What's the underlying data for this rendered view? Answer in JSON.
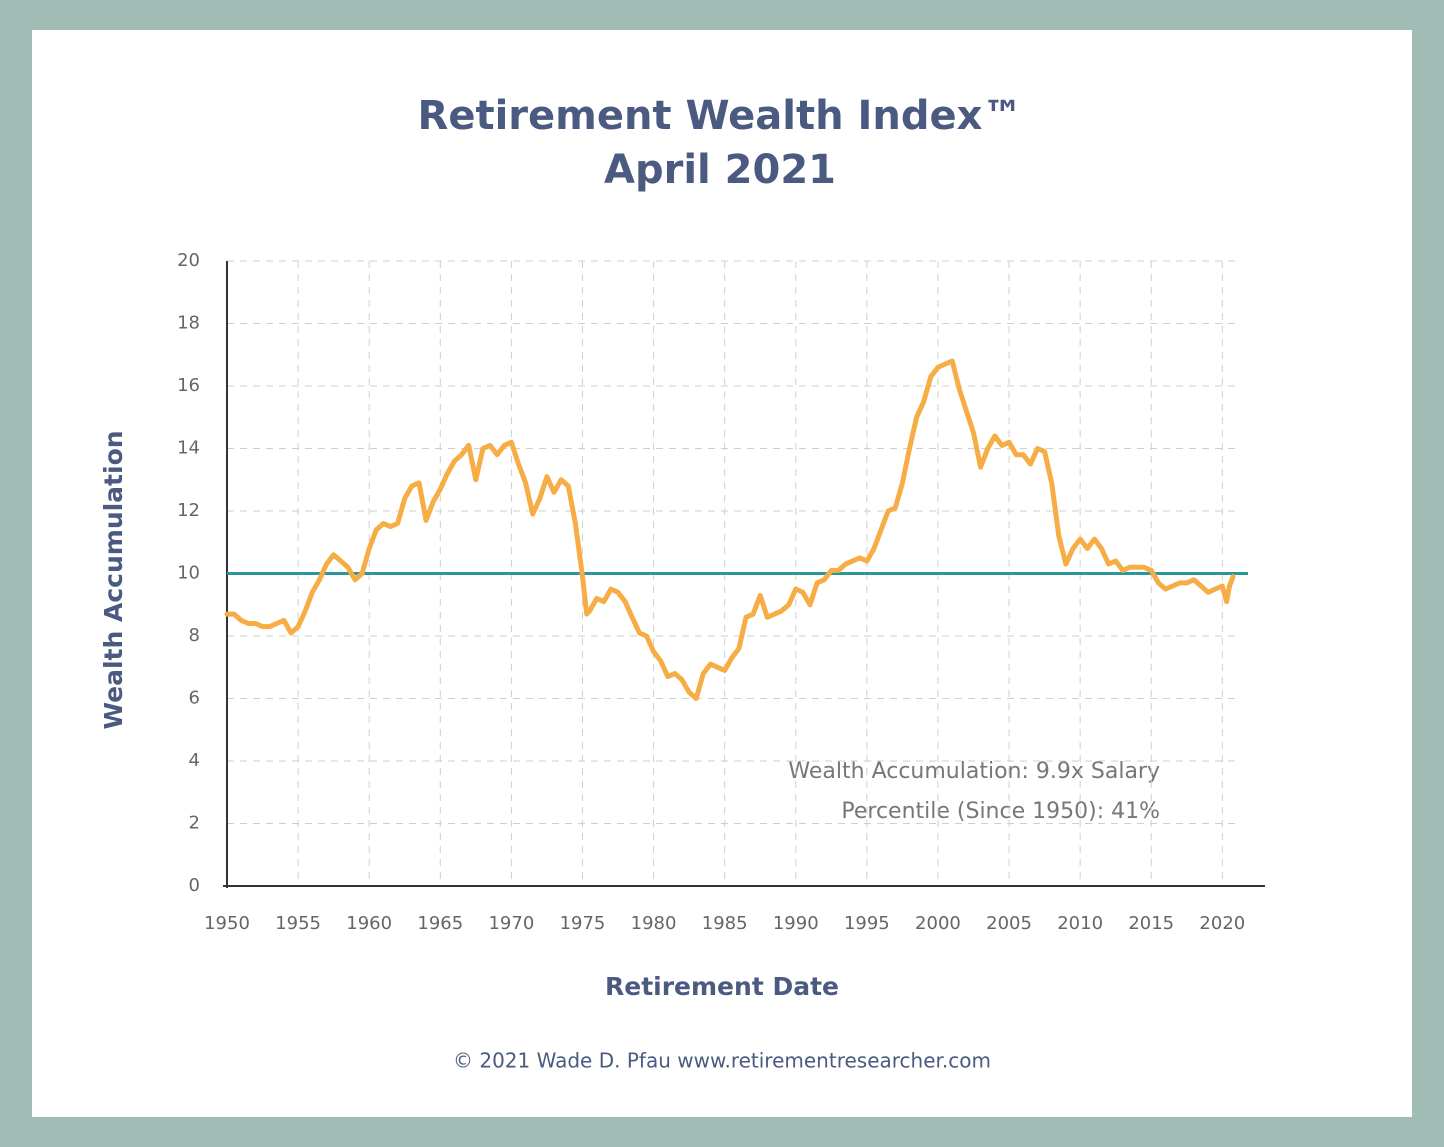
{
  "chart_data": {
    "type": "line",
    "title": "Retirement Wealth Index™",
    "subtitle": "April 2021",
    "x_label": "Retirement Date",
    "y_label": "Wealth Accumulation",
    "annotations": [
      "Wealth Accumulation: 9.9x Salary",
      "Percentile (Since 1950): 41%"
    ],
    "footer": "© 2021 Wade D. Pfau www.retirementresearcher.com",
    "color": "#f7ad45",
    "reference_line": {
      "value": 10,
      "color": "#2a979b"
    },
    "grid": true,
    "xlim": [
      1950,
      2023
    ],
    "xticks": [
      1950,
      1955,
      1960,
      1965,
      1970,
      1975,
      1980,
      1985,
      1990,
      1995,
      2000,
      2005,
      2010,
      2015,
      2020
    ],
    "ylim": [
      0,
      20
    ],
    "yticks": [
      0,
      2,
      4,
      6,
      8,
      10,
      12,
      14,
      16,
      18,
      20
    ],
    "x": [
      1950,
      1950.5,
      1951,
      1951.5,
      1952,
      1952.5,
      1953,
      1953.5,
      1954,
      1954.5,
      1955,
      1955.5,
      1956,
      1956.5,
      1957,
      1957.5,
      1958,
      1958.5,
      1959,
      1959.5,
      1960,
      1960.5,
      1961,
      1961.5,
      1962,
      1962.5,
      1963,
      1963.5,
      1964,
      1964.5,
      1965,
      1965.5,
      1966,
      1966.5,
      1967,
      1967.5,
      1968,
      1968.5,
      1969,
      1969.5,
      1970,
      1970.5,
      1971,
      1971.5,
      1972,
      1972.5,
      1973,
      1973.5,
      1974,
      1974.5,
      1975,
      1975.3,
      1975.5,
      1976,
      1976.5,
      1977,
      1977.5,
      1978,
      1978.5,
      1979,
      1979.5,
      1980,
      1980.5,
      1981,
      1981.5,
      1982,
      1982.5,
      1983,
      1983.5,
      1984,
      1984.5,
      1985,
      1985.5,
      1986,
      1986.5,
      1987,
      1987.5,
      1988,
      1988.5,
      1989,
      1989.5,
      1990,
      1990.5,
      1991,
      1991.5,
      1992,
      1992.5,
      1993,
      1993.5,
      1994,
      1994.5,
      1995,
      1995.5,
      1996,
      1996.5,
      1997,
      1997.5,
      1998,
      1998.5,
      1999,
      1999.5,
      2000,
      2000.5,
      2001,
      2001.5,
      2002,
      2002.5,
      2003,
      2003.5,
      2004,
      2004.5,
      2005,
      2005.5,
      2006,
      2006.5,
      2007,
      2007.5,
      2008,
      2008.5,
      2009,
      2009.5,
      2010,
      2010.5,
      2011,
      2011.5,
      2012,
      2012.5,
      2013,
      2013.5,
      2014,
      2014.5,
      2015,
      2015.5,
      2016,
      2016.5,
      2017,
      2017.5,
      2018,
      2018.5,
      2019,
      2019.5,
      2020,
      2020.3,
      2020.5,
      2020.75
    ],
    "values": [
      8.7,
      8.7,
      8.5,
      8.4,
      8.4,
      8.3,
      8.3,
      8.4,
      8.5,
      8.1,
      8.3,
      8.8,
      9.4,
      9.8,
      10.3,
      10.6,
      10.4,
      10.2,
      9.8,
      10.0,
      10.8,
      11.4,
      11.6,
      11.5,
      11.6,
      12.4,
      12.8,
      12.9,
      11.7,
      12.3,
      12.7,
      13.2,
      13.6,
      13.8,
      14.1,
      13.0,
      14.0,
      14.1,
      13.8,
      14.1,
      14.2,
      13.5,
      12.9,
      11.9,
      12.4,
      13.1,
      12.6,
      13.0,
      12.8,
      11.6,
      9.9,
      8.7,
      8.8,
      9.2,
      9.1,
      9.5,
      9.4,
      9.1,
      8.6,
      8.1,
      8.0,
      7.5,
      7.2,
      6.7,
      6.8,
      6.6,
      6.2,
      6.0,
      6.8,
      7.1,
      7.0,
      6.9,
      7.3,
      7.6,
      8.6,
      8.7,
      9.3,
      8.6,
      8.7,
      8.8,
      9.0,
      9.5,
      9.4,
      9.0,
      9.7,
      9.8,
      10.1,
      10.1,
      10.3,
      10.4,
      10.5,
      10.4,
      10.8,
      11.4,
      12.0,
      12.1,
      12.9,
      14.0,
      15.0,
      15.5,
      16.3,
      16.6,
      16.7,
      16.8,
      15.9,
      15.2,
      14.5,
      13.4,
      14.0,
      14.4,
      14.1,
      14.2,
      13.8,
      13.8,
      13.5,
      14.0,
      13.9,
      12.9,
      11.2,
      10.3,
      10.8,
      11.1,
      10.8,
      11.1,
      10.8,
      10.3,
      10.4,
      10.1,
      10.2,
      10.2,
      10.2,
      10.1,
      9.7,
      9.5,
      9.6,
      9.7,
      9.7,
      9.8,
      9.6,
      9.4,
      9.5,
      9.6,
      9.1,
      9.6,
      9.9
    ]
  }
}
